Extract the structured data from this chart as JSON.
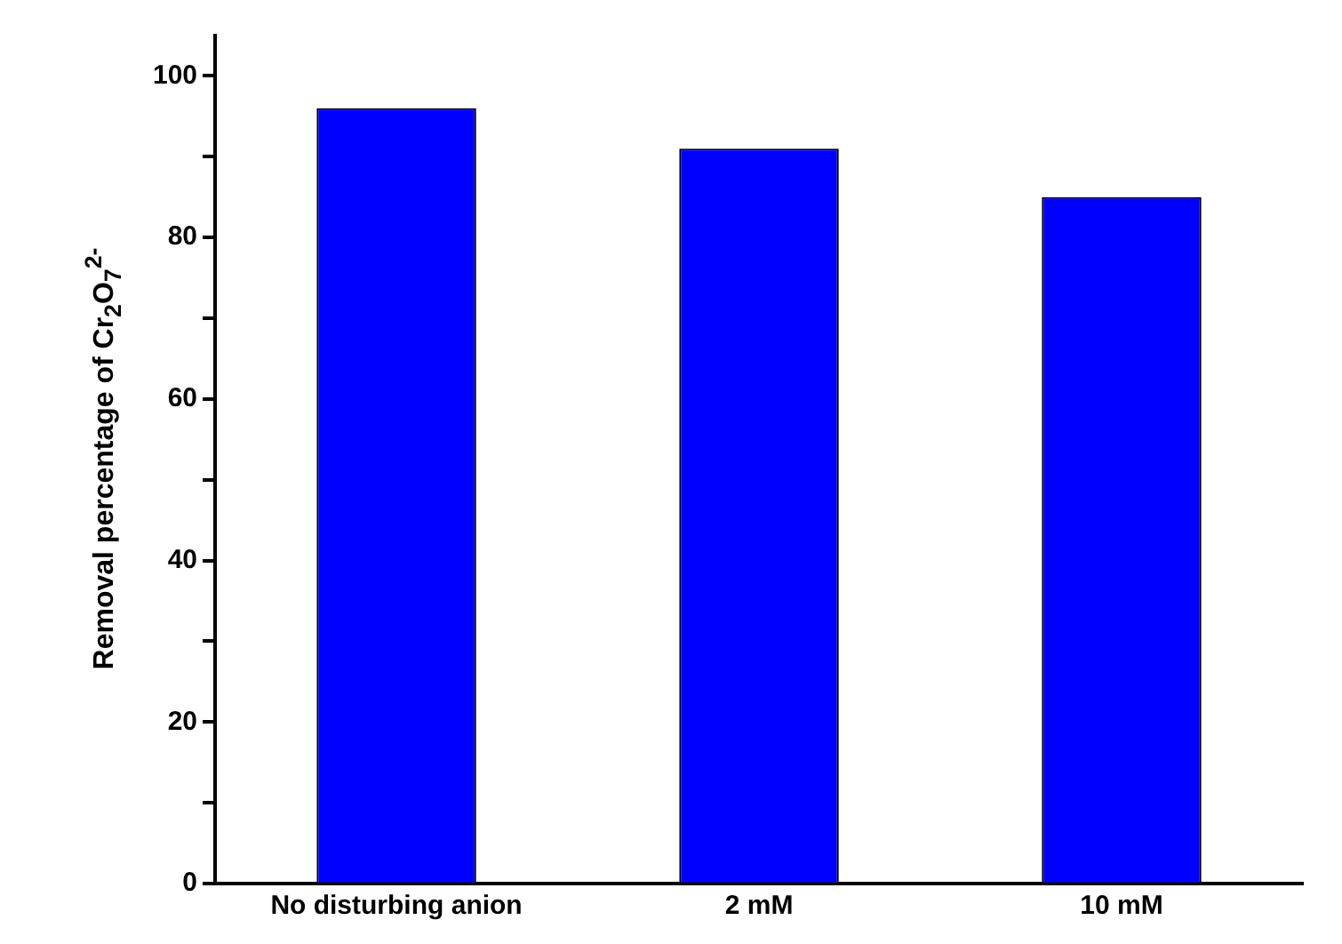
{
  "chart_data": {
    "type": "bar",
    "ylabel": "Removal percentage of Cr$_{2}$O$_{7}$$^{2-}$",
    "categories": [
      "No disturbing anion",
      "2 mM",
      "10 mM"
    ],
    "values": [
      96,
      91,
      85
    ],
    "color": "#0000ff",
    "ylim": [
      0,
      105
    ],
    "yticks": [
      0,
      {
        "value": 10,
        "label": null
      },
      20,
      {
        "value": 30,
        "label": null
      },
      40,
      {
        "value": 50,
        "label": null
      },
      60,
      {
        "value": 70,
        "label": null
      },
      80,
      {
        "value": 90,
        "label": null
      },
      100
    ],
    "grid": false,
    "legend": false
  }
}
